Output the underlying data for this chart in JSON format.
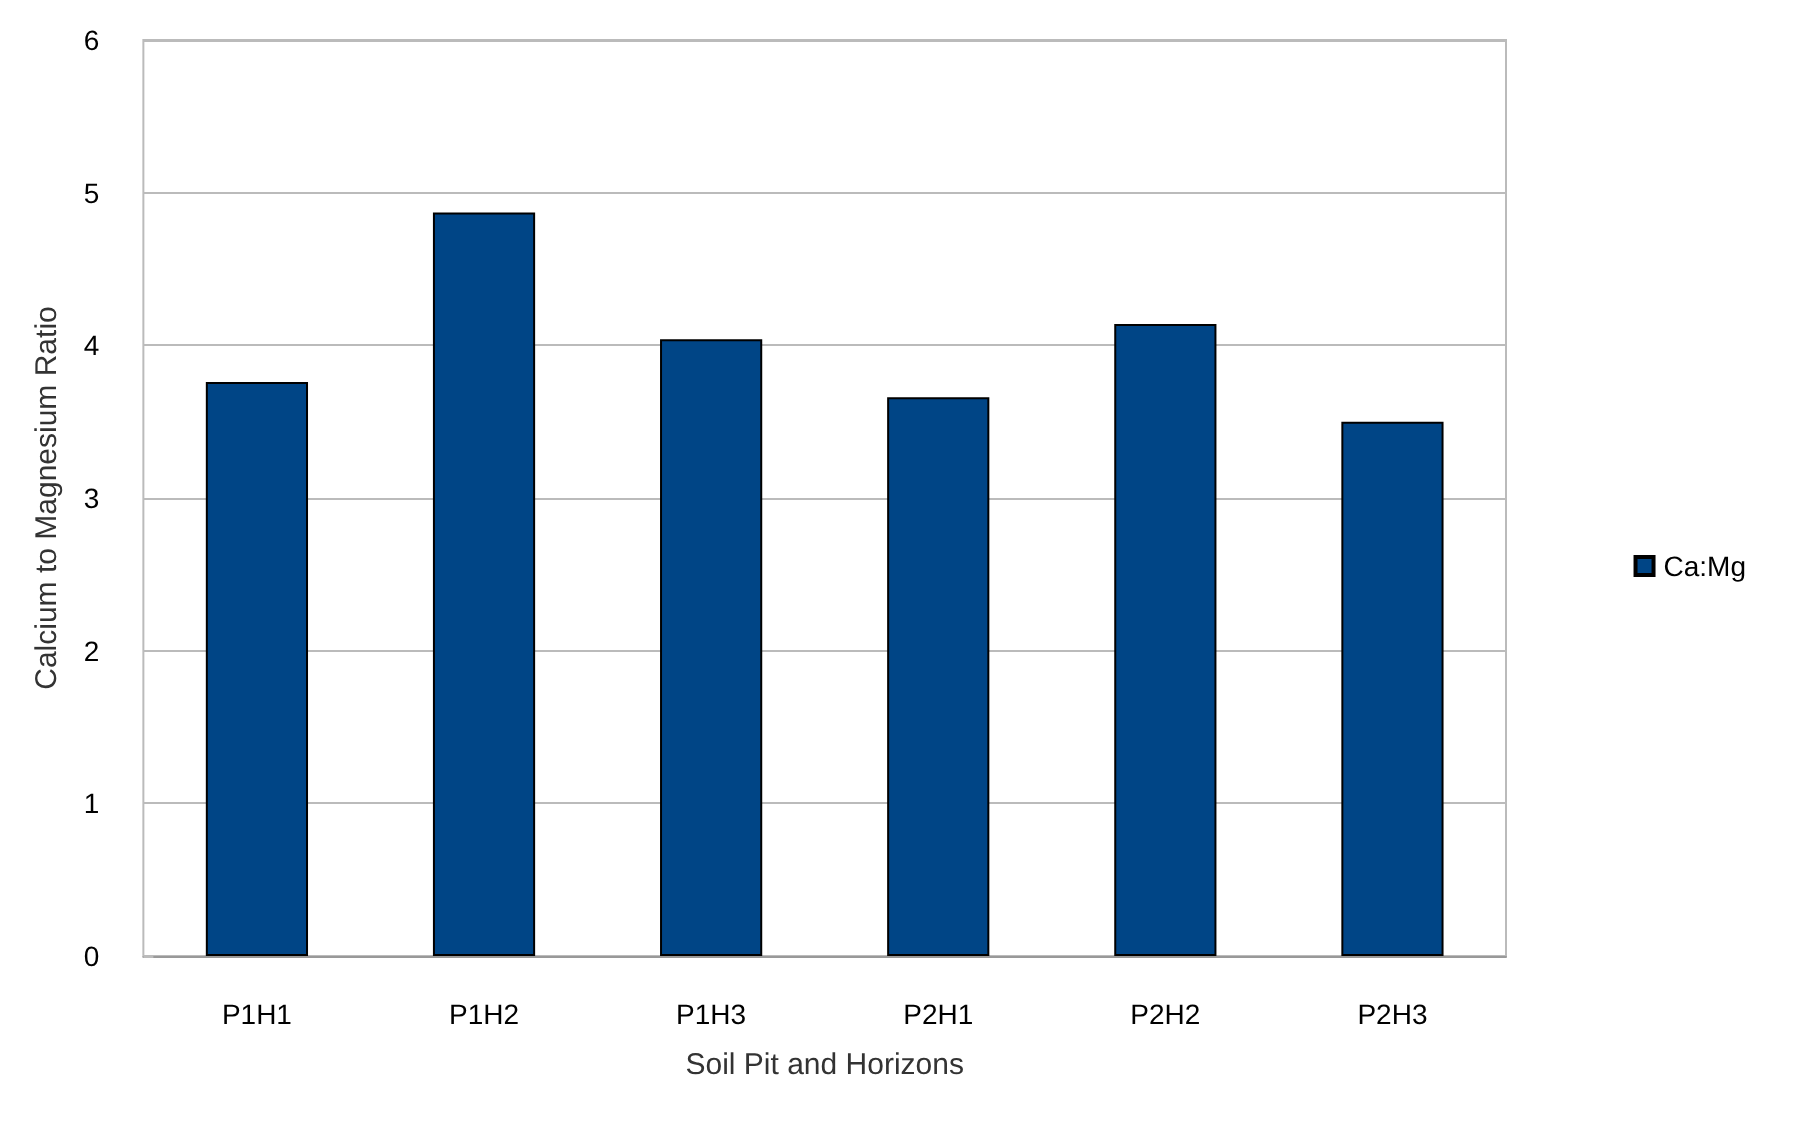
{
  "chart_data": {
    "type": "bar",
    "xlabel": "Soil Pit and Horizons",
    "ylabel": "Calcium to Magnesium Ratio",
    "categories": [
      "P1H1",
      "P1H2",
      "P1H3",
      "P2H1",
      "P2H2",
      "P2H3"
    ],
    "series": [
      {
        "name": "Ca:Mg",
        "color": "#004586",
        "values": [
          3.76,
          4.87,
          4.04,
          3.66,
          4.14,
          3.5
        ]
      }
    ],
    "ylim": [
      0,
      6
    ],
    "yticks": [
      0,
      1,
      2,
      3,
      4,
      5,
      6
    ],
    "grid": "y",
    "legend": "right"
  }
}
